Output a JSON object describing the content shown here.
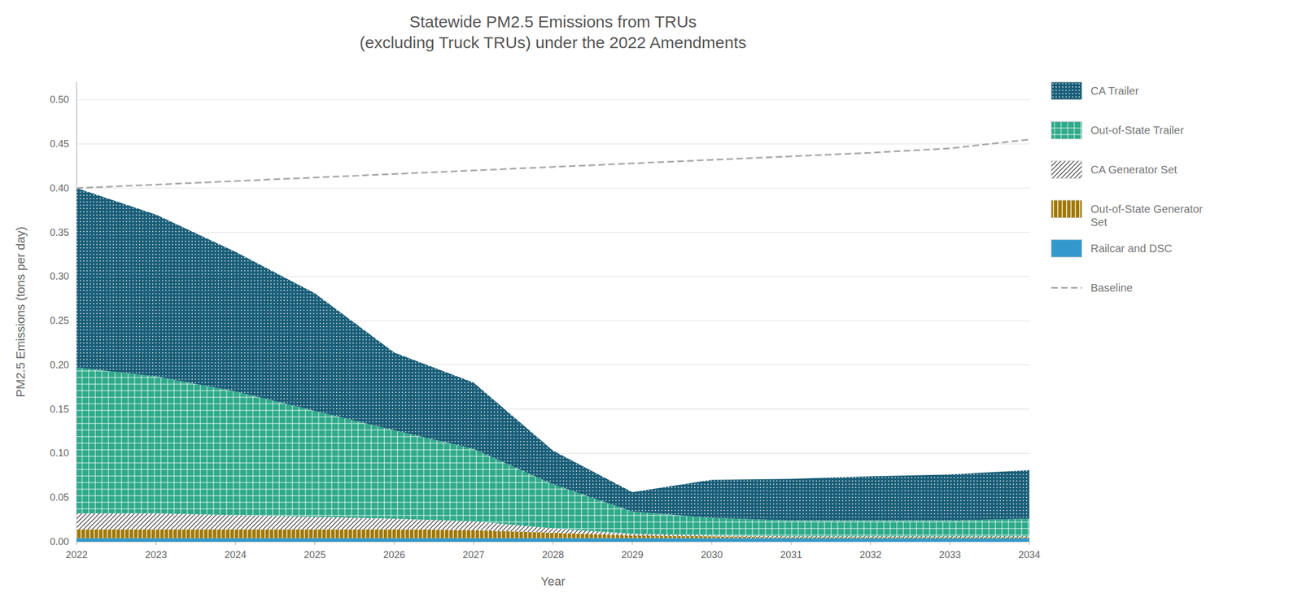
{
  "chart_data": {
    "type": "area",
    "stacked": true,
    "title": "Statewide PM2.5 Emissions from TRUs\n(excluding Truck TRUs) under the 2022 Amendments",
    "x_label": "Year",
    "y_label": "PM2.5 Emissions (tons per day)",
    "x": [
      2022,
      2023,
      2024,
      2025,
      2026,
      2027,
      2028,
      2029,
      2030,
      2031,
      2032,
      2033,
      2034
    ],
    "series": [
      {
        "name": "Railcar and DSC",
        "color": "#3399cc",
        "values": [
          0.004,
          0.004,
          0.004,
          0.004,
          0.004,
          0.004,
          0.004,
          0.004,
          0.004,
          0.004,
          0.004,
          0.004,
          0.004
        ]
      },
      {
        "name": "Out-of-State Generator\nSet",
        "color": "#a07800",
        "values": [
          0.01,
          0.01,
          0.01,
          0.01,
          0.01,
          0.009,
          0.006,
          0.003,
          0.002,
          0.001,
          0.001,
          0.001,
          0.001
        ]
      },
      {
        "name": "CA Generator Set",
        "color": "#ffffff",
        "values": [
          0.018,
          0.018,
          0.016,
          0.014,
          0.012,
          0.01,
          0.005,
          0.002,
          0.001,
          0.001,
          0.001,
          0.001,
          0.001
        ]
      },
      {
        "name": "Out-of-State Trailer",
        "color": "#2eaa8a",
        "values": [
          0.165,
          0.155,
          0.14,
          0.12,
          0.1,
          0.082,
          0.05,
          0.025,
          0.02,
          0.018,
          0.018,
          0.018,
          0.02
        ]
      },
      {
        "name": "CA Trailer",
        "color": "#1a5e78",
        "values": [
          0.203,
          0.183,
          0.158,
          0.133,
          0.088,
          0.075,
          0.038,
          0.022,
          0.043,
          0.047,
          0.05,
          0.052,
          0.055
        ]
      },
      {
        "name": "Baseline",
        "type": "line",
        "line_style": "dashed",
        "color": "#aaaaaa",
        "values": [
          0.4,
          0.404,
          0.408,
          0.412,
          0.416,
          0.42,
          0.424,
          0.428,
          0.432,
          0.436,
          0.44,
          0.445,
          0.455
        ]
      }
    ],
    "xlim": [
      2022,
      2034
    ],
    "xticks": [
      2022,
      2023,
      2024,
      2025,
      2026,
      2027,
      2028,
      2029,
      2030,
      2031,
      2032,
      2033,
      2034
    ],
    "ylim": [
      0.0,
      0.52
    ],
    "yticks": [
      {
        "value": 0.0,
        "label": "0.00"
      },
      0.05,
      {
        "value": 0.1,
        "label": "0.10"
      },
      0.15,
      {
        "value": 0.2,
        "label": "0.20"
      },
      0.25,
      {
        "value": 0.3,
        "label": "0.30"
      },
      0.35,
      {
        "value": 0.4,
        "label": "0.40"
      },
      0.45,
      {
        "value": 0.5,
        "label": "0.50"
      }
    ],
    "grid": true,
    "legend": "right"
  }
}
